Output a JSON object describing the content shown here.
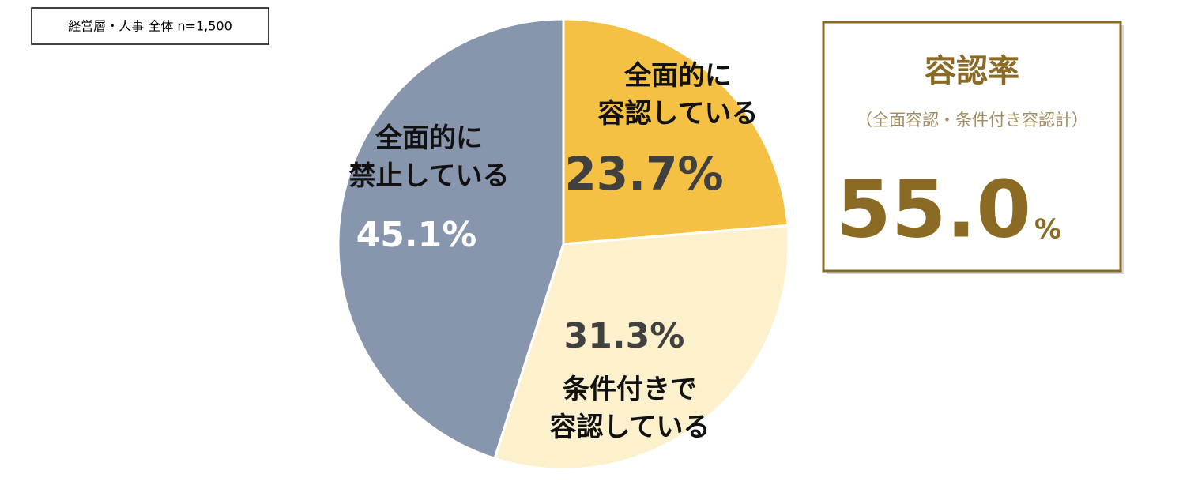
{
  "chart_data": {
    "type": "pie",
    "note": "経営層・人事 全体 n=1,500",
    "categories": [
      "全面的に\n容認している",
      "条件付きで\n容認している",
      "全面的に\n禁止している"
    ],
    "values": [
      23.7,
      31.3,
      45.1
    ],
    "value_labels": [
      "23.7%",
      "31.3%",
      "45.1%"
    ],
    "colors": [
      "#f4c144",
      "#fdf1cd",
      "#8795ad"
    ],
    "summary": {
      "title": "容認率",
      "subtitle": "（全面容認・条件付き容認計）",
      "value": 55,
      "label": "55.0",
      "unit": "%"
    }
  }
}
